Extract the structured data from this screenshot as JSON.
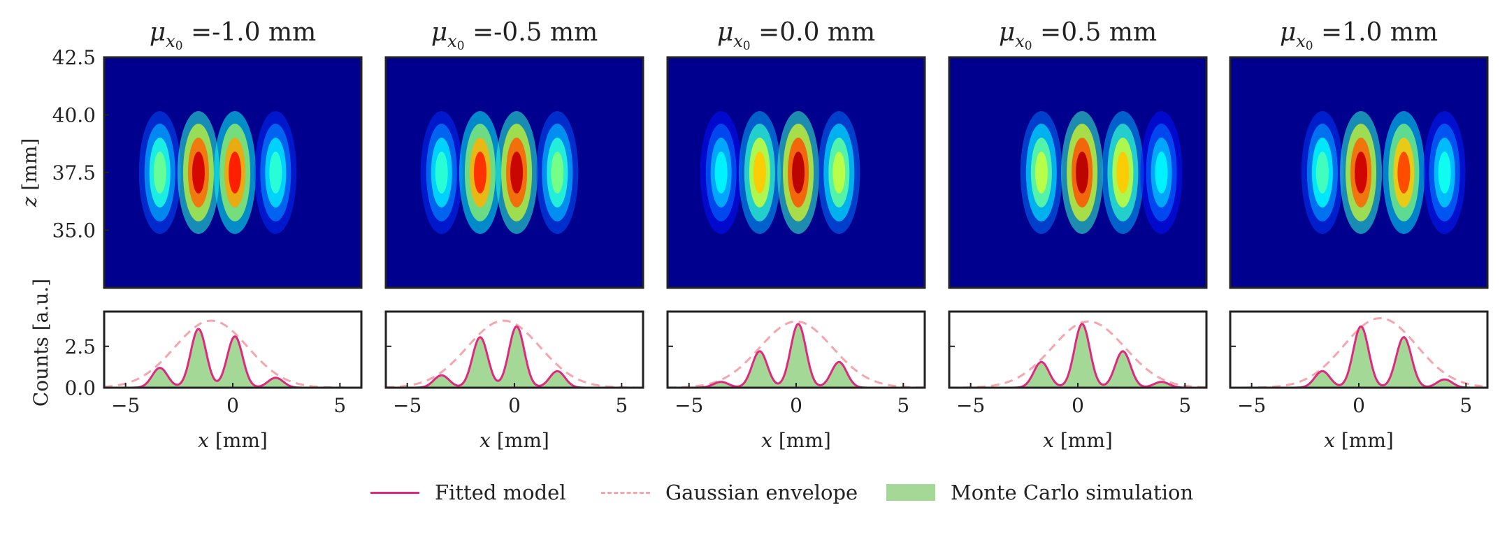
{
  "colors": {
    "fitted_model": "#e0287f",
    "gaussian_envelope": "#f5a6ad",
    "monte_carlo": "#a3d897",
    "heatmap_background": "#00008f",
    "frame": "#222222"
  },
  "legend": {
    "fitted_model": "Fitted model",
    "gaussian_envelope": "Gaussian envelope",
    "monte_carlo": "Monte Carlo simulation"
  },
  "chart_data": [
    {
      "type": "heatmap",
      "title_value": "-1.0 mm",
      "mu_x0": -1.0,
      "ylabel": "z [mm]",
      "xlim": [
        -6.0,
        6.0
      ],
      "ylim": [
        32.5,
        42.5
      ],
      "yticks": [
        "42.5",
        "40.0",
        "37.5",
        "35.0"
      ],
      "peak_z": 37.5,
      "fringes": [
        {
          "x": -3.4,
          "intensity": 0.28
        },
        {
          "x": -1.6,
          "intensity": 0.95
        },
        {
          "x": 0.1,
          "intensity": 0.85
        },
        {
          "x": 2.0,
          "intensity": 0.18
        }
      ]
    },
    {
      "type": "heatmap",
      "title_value": "-0.5 mm",
      "mu_x0": -0.5,
      "xlim": [
        -6.0,
        6.0
      ],
      "ylim": [
        32.5,
        42.5
      ],
      "peak_z": 37.5,
      "fringes": [
        {
          "x": -3.4,
          "intensity": 0.18
        },
        {
          "x": -1.6,
          "intensity": 0.82
        },
        {
          "x": 0.1,
          "intensity": 0.97
        },
        {
          "x": 2.0,
          "intensity": 0.3
        }
      ]
    },
    {
      "type": "heatmap",
      "title_value": "0.0 mm",
      "mu_x0": 0.0,
      "xlim": [
        -6.0,
        6.0
      ],
      "ylim": [
        32.5,
        42.5
      ],
      "peak_z": 37.5,
      "fringes": [
        {
          "x": -3.5,
          "intensity": 0.1
        },
        {
          "x": -1.7,
          "intensity": 0.58
        },
        {
          "x": 0.1,
          "intensity": 0.99
        },
        {
          "x": 2.0,
          "intensity": 0.4
        }
      ]
    },
    {
      "type": "heatmap",
      "title_value": "0.5 mm",
      "mu_x0": 0.5,
      "xlim": [
        -6.0,
        6.0
      ],
      "ylim": [
        32.5,
        42.5
      ],
      "peak_z": 37.5,
      "fringes": [
        {
          "x": -1.7,
          "intensity": 0.4
        },
        {
          "x": 0.2,
          "intensity": 0.99
        },
        {
          "x": 2.1,
          "intensity": 0.58
        },
        {
          "x": 3.9,
          "intensity": 0.1
        }
      ]
    },
    {
      "type": "heatmap",
      "title_value": "1.0 mm",
      "mu_x0": 1.0,
      "xlim": [
        -6.0,
        6.0
      ],
      "ylim": [
        32.5,
        42.5
      ],
      "peak_z": 37.5,
      "fringes": [
        {
          "x": -1.7,
          "intensity": 0.22
        },
        {
          "x": 0.1,
          "intensity": 0.96
        },
        {
          "x": 2.1,
          "intensity": 0.78
        },
        {
          "x": 4.0,
          "intensity": 0.14
        }
      ]
    },
    {
      "type": "area",
      "panel": 1,
      "ylabel": "Counts [a.u.]",
      "xlabel": "x [mm]",
      "xlim": [
        -6.0,
        6.0
      ],
      "ylim": [
        0.0,
        4.6
      ],
      "xticks": [
        "−5",
        "0",
        "5"
      ],
      "yticks": [
        "0.0",
        "2.5"
      ],
      "peaks": [
        {
          "x": -3.4,
          "y": 1.2
        },
        {
          "x": -1.6,
          "y": 3.55
        },
        {
          "x": 0.1,
          "y": 3.1
        },
        {
          "x": 2.0,
          "y": 0.6
        }
      ],
      "envelope": {
        "center": -1.0,
        "amplitude": 4.05
      }
    },
    {
      "type": "area",
      "panel": 2,
      "xlabel": "x [mm]",
      "xlim": [
        -6.0,
        6.0
      ],
      "ylim": [
        0.0,
        4.6
      ],
      "xticks": [
        "−5",
        "0",
        "5"
      ],
      "peaks": [
        {
          "x": -3.4,
          "y": 0.75
        },
        {
          "x": -1.6,
          "y": 3.05
        },
        {
          "x": 0.1,
          "y": 3.7
        },
        {
          "x": 2.0,
          "y": 1.0
        }
      ],
      "envelope": {
        "center": -0.5,
        "amplitude": 4.05
      }
    },
    {
      "type": "area",
      "panel": 3,
      "xlabel": "x [mm]",
      "xlim": [
        -6.0,
        6.0
      ],
      "ylim": [
        0.0,
        4.6
      ],
      "xticks": [
        "−5",
        "0",
        "5"
      ],
      "peaks": [
        {
          "x": -3.5,
          "y": 0.35
        },
        {
          "x": -1.7,
          "y": 2.2
        },
        {
          "x": 0.1,
          "y": 3.85
        },
        {
          "x": 2.0,
          "y": 1.55
        }
      ],
      "envelope": {
        "center": 0.0,
        "amplitude": 4.0
      }
    },
    {
      "type": "area",
      "panel": 4,
      "xlabel": "x [mm]",
      "xlim": [
        -6.0,
        6.0
      ],
      "ylim": [
        0.0,
        4.6
      ],
      "xticks": [
        "−5",
        "0",
        "5"
      ],
      "peaks": [
        {
          "x": -1.7,
          "y": 1.55
        },
        {
          "x": 0.2,
          "y": 3.85
        },
        {
          "x": 2.1,
          "y": 2.2
        },
        {
          "x": 3.9,
          "y": 0.35
        }
      ],
      "envelope": {
        "center": 0.5,
        "amplitude": 4.0
      }
    },
    {
      "type": "area",
      "panel": 5,
      "xlabel": "x [mm]",
      "xlim": [
        -6.0,
        6.0
      ],
      "ylim": [
        0.0,
        4.6
      ],
      "xticks": [
        "−5",
        "0",
        "5"
      ],
      "peaks": [
        {
          "x": -1.7,
          "y": 1.0
        },
        {
          "x": 0.1,
          "y": 3.7
        },
        {
          "x": 2.1,
          "y": 3.05
        },
        {
          "x": 4.0,
          "y": 0.5
        }
      ],
      "envelope": {
        "center": 1.0,
        "amplitude": 4.2
      }
    }
  ]
}
